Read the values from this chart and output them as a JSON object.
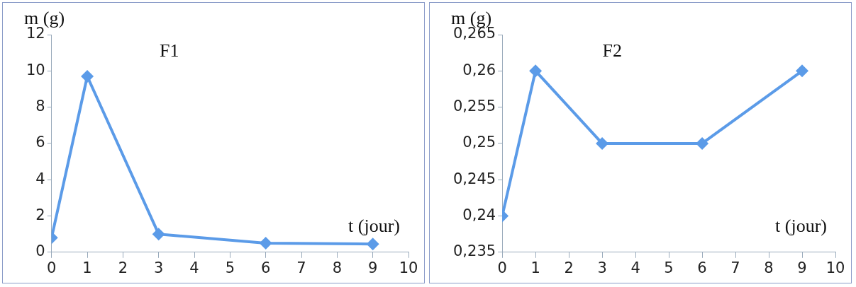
{
  "chart_data": [
    {
      "type": "line",
      "title": "F1",
      "ylabel": "m (g)",
      "xlabel": "t (jour)",
      "x": [
        0,
        1,
        3,
        6,
        9
      ],
      "series": [
        {
          "color": "#5b9be8",
          "values": [
            0.8,
            9.7,
            1.0,
            0.5,
            0.45
          ]
        }
      ],
      "xlim": [
        0,
        10
      ],
      "xticks": [
        0,
        1,
        2,
        3,
        4,
        5,
        6,
        7,
        8,
        9,
        10
      ],
      "ylim": [
        0,
        12
      ],
      "yticks": [
        0,
        2,
        4,
        6,
        8,
        10,
        12
      ],
      "grid": false,
      "legend": false,
      "marker": "diamond",
      "line_style": "solid"
    },
    {
      "type": "line",
      "title": "F2",
      "ylabel": "m (g)",
      "xlabel": "t (jour)",
      "x": [
        0,
        1,
        3,
        6,
        9
      ],
      "series": [
        {
          "color": "#5b9be8",
          "values": [
            0.24,
            0.26,
            0.25,
            0.25,
            0.26
          ]
        }
      ],
      "xlim": [
        0,
        10
      ],
      "xticks": [
        0,
        1,
        2,
        3,
        4,
        5,
        6,
        7,
        8,
        9,
        10
      ],
      "ylim": [
        0.235,
        0.265
      ],
      "yticks": [
        {
          "value": 0.235,
          "label": "0,235"
        },
        {
          "value": 0.24,
          "label": "0,24"
        },
        {
          "value": 0.245,
          "label": "0,245"
        },
        {
          "value": 0.25,
          "label": "0,25"
        },
        {
          "value": 0.255,
          "label": "0,255"
        },
        {
          "value": 0.26,
          "label": "0,26"
        },
        {
          "value": 0.265,
          "label": "0,265"
        }
      ],
      "grid": false,
      "legend": false,
      "marker": "diamond",
      "line_style": "solid"
    }
  ]
}
